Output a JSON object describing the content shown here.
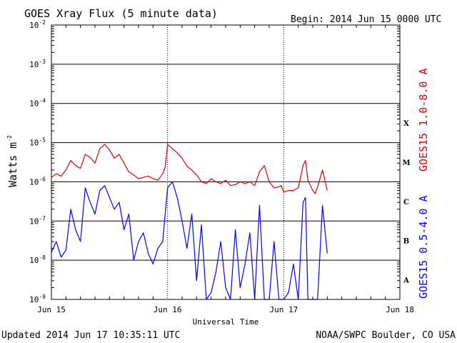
{
  "header": {
    "title": "GOES Xray Flux (5 minute data)",
    "begin": "Begin:  2014 Jun 15 0000 UTC"
  },
  "footer": {
    "updated": "Updated 2014 Jun 17 10:35:11 UTC",
    "credit": "NOAA/SWPC Boulder, CO USA"
  },
  "colors": {
    "long_channel": "#e00000",
    "short_channel": "#0000ff",
    "frame": "#000000"
  },
  "chart_data": {
    "type": "line",
    "xlabel": "Universal Time",
    "ylabel_base": "Watts m",
    "ylabel_exp": "-2",
    "yscale": "log",
    "ylim": [
      1e-09,
      0.01
    ],
    "xlim": [
      0,
      72
    ],
    "x_unit": "hours since 2014 Jun 15 0000 UTC",
    "x_ticks": [
      {
        "x": 0,
        "label": "Jun 15"
      },
      {
        "x": 24,
        "label": "Jun 16"
      },
      {
        "x": 48,
        "label": "Jun 17"
      },
      {
        "x": 72,
        "label": "Jun 18"
      }
    ],
    "y_ticks": [
      {
        "exp": -2
      },
      {
        "exp": -3
      },
      {
        "exp": -4
      },
      {
        "exp": -5
      },
      {
        "exp": -6
      },
      {
        "exp": -7
      },
      {
        "exp": -8
      },
      {
        "exp": -9
      }
    ],
    "flare_classes": [
      {
        "label": "X",
        "exp": -4
      },
      {
        "label": "M",
        "exp": -5
      },
      {
        "label": "C",
        "exp": -6
      },
      {
        "label": "B",
        "exp": -7
      },
      {
        "label": "A",
        "exp": -8
      }
    ],
    "grid": true,
    "series": [
      {
        "name": "GOES15 1.0-8.0 A",
        "color": "#e00000",
        "x": [
          0,
          1,
          2,
          3,
          4,
          5,
          6,
          7,
          8,
          9,
          10,
          11,
          12,
          13,
          14,
          15,
          16,
          17,
          18,
          19,
          20,
          21,
          22,
          23,
          23.5,
          24,
          25,
          26,
          27,
          28,
          29,
          30,
          31,
          32,
          33,
          34,
          35,
          36,
          37,
          38,
          39,
          40,
          41,
          42,
          43,
          44,
          45,
          46,
          47,
          47.5,
          48,
          49,
          50,
          51,
          52,
          52.5,
          53,
          54,
          54.5,
          55,
          56,
          57
        ],
        "y": [
          1.3e-06,
          1.6e-06,
          1.4e-06,
          2e-06,
          3.5e-06,
          2.6e-06,
          2.2e-06,
          5e-06,
          4.2e-06,
          3e-06,
          7e-06,
          9e-06,
          6.5e-06,
          4e-06,
          5e-06,
          3e-06,
          1.8e-06,
          1.5e-06,
          1.2e-06,
          1.3e-06,
          1.4e-06,
          1.2e-06,
          1.1e-06,
          1.6e-06,
          2.4e-06,
          9e-06,
          7e-06,
          5.5e-06,
          4e-06,
          2.5e-06,
          2e-06,
          1.5e-06,
          1e-06,
          9e-07,
          1.2e-06,
          1e-06,
          9e-07,
          1.1e-06,
          8e-07,
          8.5e-07,
          1e-06,
          9e-07,
          1e-06,
          8e-07,
          1.8e-06,
          2.6e-06,
          1e-06,
          7e-07,
          7.5e-07,
          8e-07,
          5.5e-07,
          6e-07,
          6e-07,
          7e-07,
          2.6e-06,
          3.5e-06,
          1.1e-06,
          6e-07,
          5e-07,
          7.5e-07,
          2e-06,
          6e-07
        ]
      },
      {
        "name": "GOES15 0.5-4.0 A",
        "color": "#0000ff",
        "x": [
          0,
          1,
          2,
          3,
          4,
          5,
          6,
          7,
          8,
          9,
          10,
          11,
          12,
          13,
          14,
          15,
          16,
          17,
          18,
          19,
          20,
          21,
          22,
          23,
          23.5,
          24,
          25,
          26,
          27,
          28,
          29,
          30,
          31,
          32,
          33,
          34,
          35,
          36,
          37,
          38,
          39,
          40,
          41,
          42,
          43,
          44,
          45,
          46,
          47,
          47.5,
          48,
          49,
          50,
          51,
          52,
          52.5,
          53,
          54,
          54.5,
          55,
          56,
          57
        ],
        "y": [
          1.6e-08,
          3e-08,
          1.2e-08,
          1.8e-08,
          2e-07,
          6e-08,
          3e-08,
          7e-07,
          3e-07,
          1.5e-07,
          6e-07,
          8e-07,
          4e-07,
          2e-07,
          3e-07,
          6e-08,
          1.5e-07,
          1e-08,
          3e-08,
          5e-08,
          1.5e-08,
          8e-09,
          2e-08,
          3e-08,
          1.5e-07,
          7e-07,
          1e-06,
          4e-07,
          1e-07,
          2e-08,
          1.5e-07,
          3e-09,
          8e-08,
          1e-09,
          1.5e-09,
          5e-09,
          3e-08,
          2e-09,
          1e-09,
          6e-08,
          2e-09,
          8e-09,
          5e-08,
          1e-09,
          2.5e-07,
          1e-09,
          1e-09,
          3e-08,
          1e-09,
          1e-09,
          1e-09,
          1.5e-09,
          8e-09,
          1e-09,
          3e-07,
          4e-07,
          1e-09,
          1e-09,
          1e-09,
          1e-09,
          2.5e-07,
          1.5e-08
        ]
      }
    ]
  }
}
